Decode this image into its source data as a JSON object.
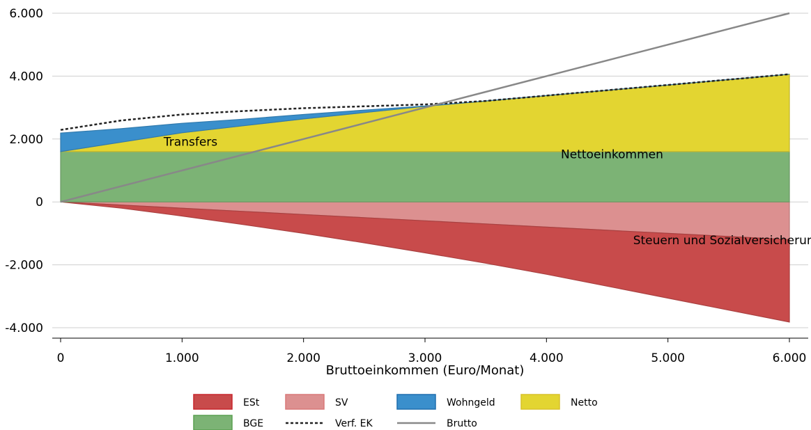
{
  "chart_data": {
    "type": "area",
    "xlabel": "Bruttoeinkommen (Euro/Monat)",
    "ylabel": "",
    "xlim": [
      0,
      6000
    ],
    "ylim": [
      -4000,
      6000
    ],
    "x_ticks": [
      0,
      1000,
      2000,
      3000,
      4000,
      5000,
      6000
    ],
    "x_tick_labels": [
      "0",
      "1.000",
      "2.000",
      "3.000",
      "4.000",
      "5.000",
      "6.000"
    ],
    "y_ticks": [
      -4000,
      -2000,
      0,
      2000,
      4000,
      6000
    ],
    "y_tick_labels": [
      "-4.000",
      "-2.000",
      "0",
      "2.000",
      "4.000",
      "6.000"
    ],
    "grid": "horizontal",
    "x": [
      0,
      500,
      1000,
      1500,
      2000,
      2500,
      3000,
      3500,
      4000,
      4500,
      5000,
      5500,
      6000
    ],
    "series": [
      {
        "name": "ESt",
        "color": "#c84b4b",
        "kind": "area",
        "values": [
          0,
          -100,
          -250,
          -420,
          -600,
          -800,
          -1020,
          -1250,
          -1500,
          -1780,
          -2060,
          -2340,
          -2620
        ]
      },
      {
        "name": "SV",
        "color": "#dc9090",
        "kind": "area",
        "values": [
          0,
          -100,
          -200,
          -300,
          -400,
          -500,
          -600,
          -700,
          -800,
          -900,
          -1000,
          -1100,
          -1200
        ]
      },
      {
        "name": "Wohngeld",
        "color": "#3a8fcc",
        "kind": "area",
        "values": [
          590,
          430,
          300,
          210,
          140,
          80,
          10,
          0,
          0,
          0,
          0,
          0,
          0
        ]
      },
      {
        "name": "Netto",
        "color": "#e3d531",
        "kind": "area",
        "values": [
          0,
          300,
          600,
          820,
          1040,
          1240,
          1440,
          1610,
          1780,
          1950,
          2120,
          2290,
          2460
        ]
      },
      {
        "name": "BGE",
        "color": "#7cb375",
        "kind": "area",
        "values": [
          1600,
          1600,
          1600,
          1600,
          1600,
          1600,
          1600,
          1600,
          1600,
          1600,
          1600,
          1600,
          1600
        ]
      },
      {
        "name": "Verf. EK",
        "color": "#222222",
        "kind": "line-dashed",
        "values": [
          2290,
          2590,
          2780,
          2890,
          2980,
          3040,
          3100,
          3210,
          3380,
          3550,
          3720,
          3890,
          4060
        ]
      },
      {
        "name": "Brutto",
        "color": "#888888",
        "kind": "line",
        "values": [
          0,
          500,
          1000,
          1500,
          2000,
          2500,
          3000,
          3500,
          4000,
          4500,
          5000,
          5500,
          6000
        ]
      }
    ],
    "annotations": [
      {
        "text": "Transfers",
        "x": 1070,
        "y": 1780
      },
      {
        "text": "Nettoeinkommen",
        "x": 4540,
        "y": 1390
      },
      {
        "text": "Steuern und Sozialversicherung",
        "x": 5490,
        "y": -1340
      }
    ],
    "legend": {
      "placement": "bottom",
      "entries": [
        {
          "name": "ESt",
          "kind": "box",
          "color": "#c84b4b",
          "border": "#c8262d"
        },
        {
          "name": "SV",
          "kind": "box",
          "color": "#dc9090",
          "border": "#d97878"
        },
        {
          "name": "Wohngeld",
          "kind": "box",
          "color": "#3a8fcc",
          "border": "#1f6fae"
        },
        {
          "name": "Netto",
          "kind": "box",
          "color": "#e3d531",
          "border": "#d8c22a"
        },
        {
          "name": "BGE",
          "kind": "box",
          "color": "#7cb375",
          "border": "#5aa050"
        },
        {
          "name": "Verf. EK",
          "kind": "dashed",
          "color": "#222222"
        },
        {
          "name": "Brutto",
          "kind": "line",
          "color": "#888888"
        }
      ]
    }
  }
}
